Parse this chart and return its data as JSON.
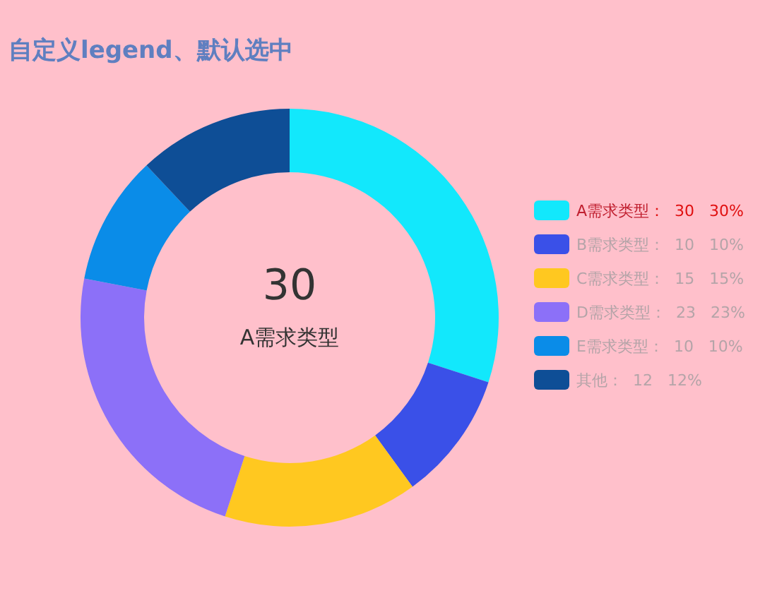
{
  "chart_data": {
    "type": "donut",
    "title": "自定义legend、默认选中",
    "categories": [
      "A需求类型",
      "B需求类型",
      "C需求类型",
      "D需求类型",
      "E需求类型",
      "其他"
    ],
    "values": [
      30,
      10,
      15,
      23,
      10,
      12
    ],
    "colors": [
      "#12e8fc",
      "#3a50e8",
      "#ffc820",
      "#8c70f8",
      "#0a8ce8",
      "#0e4e96"
    ],
    "value_labels": [
      "：  30   30%",
      "：  10   10%",
      "：  15   15%",
      "：  23   23%",
      "：  10   10%",
      "：  12   12%"
    ],
    "annotations": [
      "30",
      "A需求类型"
    ],
    "legend": "right"
  }
}
